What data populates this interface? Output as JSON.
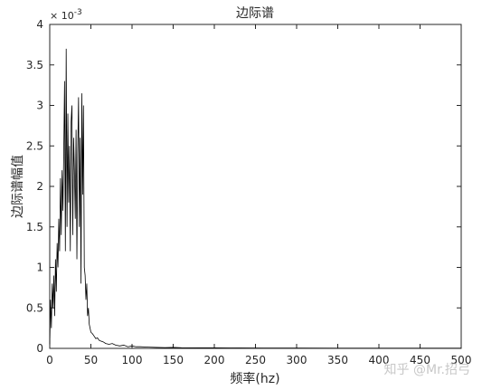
{
  "chart_data": {
    "type": "line",
    "title": "边际谱",
    "xlabel": "频率(hz)",
    "ylabel": "边际谱幅值",
    "y_exponent_label": "× 10",
    "y_exponent_power": "-3",
    "xlim": [
      0,
      500
    ],
    "ylim": [
      0,
      4
    ],
    "xticks": [
      0,
      50,
      100,
      150,
      200,
      250,
      300,
      350,
      400,
      450,
      500
    ],
    "yticks": [
      0,
      0.5,
      1,
      1.5,
      2,
      2.5,
      3,
      3.5,
      4
    ],
    "grid": false,
    "series": [
      {
        "name": "边际谱",
        "color": "#000000",
        "x": [
          0,
          1,
          2,
          3,
          4,
          5,
          6,
          7,
          8,
          9,
          10,
          11,
          12,
          13,
          14,
          15,
          16,
          17,
          18,
          19,
          20,
          21,
          22,
          23,
          24,
          25,
          26,
          27,
          28,
          29,
          30,
          31,
          32,
          33,
          34,
          35,
          36,
          37,
          38,
          39,
          40,
          41,
          42,
          43,
          44,
          45,
          46,
          47,
          48,
          49,
          50,
          52,
          54,
          56,
          58,
          60,
          62,
          65,
          68,
          72,
          76,
          80,
          85,
          90,
          95,
          100,
          105,
          110,
          120,
          130,
          140,
          150,
          160,
          180,
          200,
          230,
          260,
          300,
          350,
          400,
          450,
          500
        ],
        "values": [
          0.05,
          0.6,
          0.25,
          0.8,
          0.5,
          0.9,
          0.4,
          1.1,
          0.7,
          1.3,
          1.0,
          1.6,
          1.2,
          2.1,
          1.4,
          2.2,
          1.7,
          2.4,
          3.3,
          1.2,
          3.7,
          1.5,
          2.9,
          1.8,
          2.5,
          1.2,
          2.8,
          3.0,
          1.4,
          2.6,
          2.2,
          1.6,
          2.7,
          1.1,
          2.4,
          3.1,
          1.5,
          2.6,
          0.8,
          3.15,
          1.9,
          3.0,
          1.0,
          0.9,
          0.6,
          0.8,
          0.4,
          0.5,
          0.3,
          0.25,
          0.2,
          0.18,
          0.15,
          0.12,
          0.13,
          0.1,
          0.09,
          0.08,
          0.06,
          0.05,
          0.06,
          0.04,
          0.03,
          0.04,
          0.02,
          0.03,
          0.02,
          0.02,
          0.015,
          0.012,
          0.01,
          0.012,
          0.008,
          0.006,
          0.006,
          0.005,
          0.004,
          0.004,
          0.003,
          0.003,
          0.003,
          0.003
        ]
      }
    ]
  },
  "watermark": "知乎 @Mr.招弓"
}
